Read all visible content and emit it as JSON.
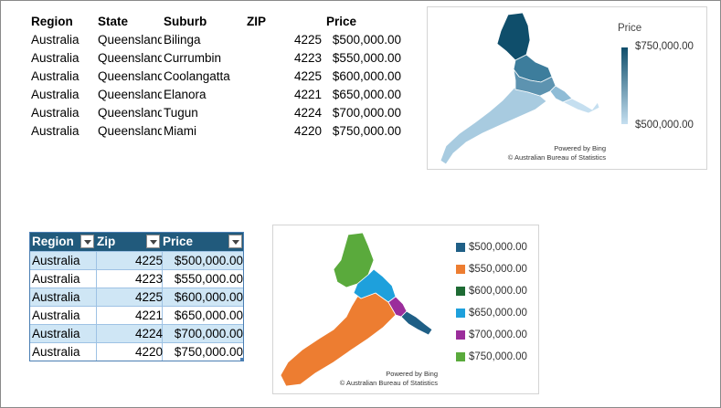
{
  "table1": {
    "headers": {
      "region": "Region",
      "state": "State",
      "suburb": "Suburb",
      "zip": "ZIP",
      "price": "Price"
    },
    "rows": [
      {
        "region": "Australia",
        "state": "Queensland",
        "suburb": "Bilinga",
        "zip": "4225",
        "price": "$500,000.00"
      },
      {
        "region": "Australia",
        "state": "Queensland",
        "suburb": "Currumbin",
        "zip": "4223",
        "price": "$550,000.00"
      },
      {
        "region": "Australia",
        "state": "Queensland",
        "suburb": "Coolangatta",
        "zip": "4225",
        "price": "$600,000.00"
      },
      {
        "region": "Australia",
        "state": "Queensland",
        "suburb": "Elanora",
        "zip": "4221",
        "price": "$650,000.00"
      },
      {
        "region": "Australia",
        "state": "Queensland",
        "suburb": "Tugun",
        "zip": "4224",
        "price": "$700,000.00"
      },
      {
        "region": "Australia",
        "state": "Queensland",
        "suburb": "Miami",
        "zip": "4220",
        "price": "$750,000.00"
      }
    ]
  },
  "map1": {
    "legend_title": "Price",
    "legend_max": "$750,000.00",
    "legend_min": "$500,000.00",
    "credit_line1": "Powered by Bing",
    "credit_line2": "© Australian Bureau of Statistics",
    "colors": {
      "dark": "#0f4e6b",
      "mid": "#3d7d9c",
      "light": "#a8cbe0",
      "lightest": "#c5dff0"
    }
  },
  "table2": {
    "headers": {
      "region": "Region",
      "zip": "Zip",
      "price": "Price"
    },
    "rows": [
      {
        "region": "Australia",
        "zip": "4225",
        "price": "$500,000.00"
      },
      {
        "region": "Australia",
        "zip": "4223",
        "price": "$550,000.00"
      },
      {
        "region": "Australia",
        "zip": "4225",
        "price": "$600,000.00"
      },
      {
        "region": "Australia",
        "zip": "4221",
        "price": "$650,000.00"
      },
      {
        "region": "Australia",
        "zip": "4224",
        "price": "$700,000.00"
      },
      {
        "region": "Australia",
        "zip": "4220",
        "price": "$750,000.00"
      }
    ],
    "header_color": "#215a7c",
    "band_color": "#cfe6f5"
  },
  "map2": {
    "legend": [
      {
        "label": "$500,000.00",
        "color": "#1f5f86"
      },
      {
        "label": "$550,000.00",
        "color": "#ed7d31"
      },
      {
        "label": "$600,000.00",
        "color": "#1e6b34"
      },
      {
        "label": "$650,000.00",
        "color": "#1ea0dc"
      },
      {
        "label": "$700,000.00",
        "color": "#9b2d9b"
      },
      {
        "label": "$750,000.00",
        "color": "#5aaa3c"
      }
    ],
    "credit_line1": "Powered by Bing",
    "credit_line2": "© Australian Bureau of Statistics"
  }
}
